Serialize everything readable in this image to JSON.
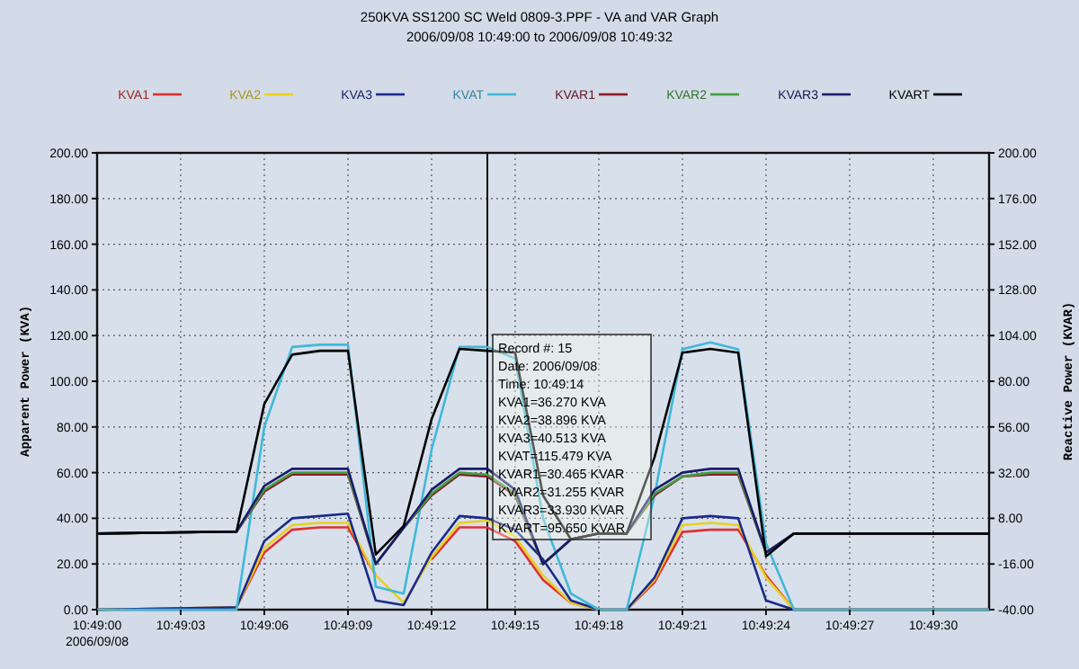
{
  "chart_data": {
    "type": "line",
    "title": "250KVA SS1200 SC Weld 0809-3.PPF - VA and VAR Graph",
    "subtitle": "2006/09/08 10:49:00 to 2006/09/08 10:49:32",
    "ylabel": "Apparent Power (KVA)",
    "y2label": "Reactive Power (KVAR)",
    "x": [
      10.816667,
      10.818056,
      10.818333,
      10.818611,
      10.818889,
      10.819167,
      10.819444,
      10.819722,
      10.82,
      10.820278,
      10.820556,
      10.820833,
      10.821111,
      10.821389,
      10.821667,
      10.821944,
      10.822222,
      10.8225,
      10.822778,
      10.823056,
      10.823333,
      10.823611,
      10.825556
    ],
    "series": [
      {
        "name": "KVA1",
        "color": "#e03030",
        "values": [
          0,
          1,
          25,
          35,
          36,
          36,
          15,
          null,
          22,
          36,
          36,
          30,
          13,
          3,
          0,
          0,
          12,
          34,
          35,
          35,
          15,
          0,
          0
        ]
      },
      {
        "name": "KVA2",
        "color": "#e8d020",
        "values": [
          0,
          1,
          27,
          37,
          38,
          38,
          15,
          3,
          23,
          38,
          39,
          32,
          15,
          3,
          0,
          0,
          13,
          37,
          38,
          37,
          14,
          0,
          0
        ]
      },
      {
        "name": "KVA3",
        "color": "#1a2a8a",
        "values": [
          0,
          1,
          30,
          40,
          41,
          42,
          4,
          2,
          25,
          41,
          40,
          35,
          22,
          4,
          0,
          0,
          14,
          40,
          41,
          40,
          4,
          0,
          0
        ]
      },
      {
        "name": "KVAT",
        "color": "#40b8d8",
        "values": [
          0,
          0,
          80,
          115,
          116,
          116,
          10,
          7,
          70,
          115,
          115,
          110,
          40,
          7,
          0,
          0,
          50,
          114,
          117,
          114,
          29,
          0,
          0
        ]
      },
      {
        "name": "KVAR1",
        "color": "#8a1a2a",
        "axis": "y2",
        "values": [
          0,
          1,
          22,
          31,
          31,
          31,
          -16,
          3,
          20,
          31,
          30,
          20,
          -16,
          -3,
          0,
          0,
          20,
          30,
          31,
          31,
          -10,
          0,
          0
        ]
      },
      {
        "name": "KVAR2",
        "color": "#40a040",
        "axis": "y2",
        "values": [
          0,
          1,
          23,
          32,
          32,
          32,
          -16,
          3,
          21,
          32,
          31,
          21,
          -16,
          -3,
          0,
          0,
          21,
          30,
          32,
          32,
          -10,
          0,
          0
        ]
      },
      {
        "name": "KVAR3",
        "color": "#1a1a6a",
        "axis": "y2",
        "values": [
          0,
          1,
          25,
          34,
          34,
          34,
          -16,
          3,
          23,
          34,
          34,
          23,
          -16,
          -3,
          0,
          0,
          23,
          32,
          34,
          34,
          -10,
          0,
          0
        ]
      },
      {
        "name": "KVART",
        "color": "#000000",
        "axis": "y2",
        "values": [
          0,
          1,
          68,
          94,
          96,
          96,
          -11,
          4,
          60,
          97,
          96,
          95,
          20,
          -3,
          0,
          0,
          40,
          95,
          97,
          95,
          -12,
          0,
          0
        ]
      }
    ],
    "xlim": [
      10.816667,
      10.825556
    ],
    "xticks": [
      {
        "value": 10.816667,
        "label": "10:49:00\n2006/09/08"
      },
      {
        "value": 10.8175,
        "label": "10:49:03"
      },
      {
        "value": 10.818333,
        "label": "10:49:06"
      },
      {
        "value": 10.819167,
        "label": "10:49:09"
      },
      {
        "value": 10.82,
        "label": "10:49:12"
      },
      {
        "value": 10.820833,
        "label": "10:49:15"
      },
      {
        "value": 10.821667,
        "label": "10:49:18"
      },
      {
        "value": 10.8225,
        "label": "10:49:21"
      },
      {
        "value": 10.823333,
        "label": "10:49:24"
      },
      {
        "value": 10.824167,
        "label": "10:49:27"
      },
      {
        "value": 10.825,
        "label": "10:49:30"
      }
    ],
    "ylim": [
      0,
      200
    ],
    "yticks": [
      {
        "value": 0,
        "label": "0.00"
      },
      {
        "value": 20,
        "label": "20.00"
      },
      {
        "value": 40,
        "label": "40.00"
      },
      {
        "value": 60,
        "label": "60.00"
      },
      {
        "value": 80,
        "label": "80.00"
      },
      {
        "value": 100,
        "label": "100.00"
      },
      {
        "value": 120,
        "label": "120.00"
      },
      {
        "value": 140,
        "label": "140.00"
      },
      {
        "value": 160,
        "label": "160.00"
      },
      {
        "value": 180,
        "label": "180.00"
      },
      {
        "value": 200,
        "label": "200.00"
      }
    ],
    "y2lim": [
      -40,
      200
    ],
    "y2ticks": [
      {
        "value": -40,
        "label": "-40.00"
      },
      {
        "value": -16,
        "label": "-16.00"
      },
      {
        "value": 8,
        "label": "8.00"
      },
      {
        "value": 32,
        "label": "32.00"
      },
      {
        "value": 56,
        "label": "56.00"
      },
      {
        "value": 80,
        "label": "80.00"
      },
      {
        "value": 104,
        "label": "104.00"
      },
      {
        "value": 128,
        "label": "128.00"
      },
      {
        "value": 152,
        "label": "152.00"
      },
      {
        "value": 176,
        "label": "176.00"
      },
      {
        "value": 200,
        "label": "200.00"
      }
    ],
    "ref_lines": [
      {
        "axis": "x",
        "value": 10.820556,
        "color": "#000000"
      }
    ],
    "annotations": [
      "Record #: 15",
      "Date: 2006/09/08",
      "Time: 10:49:14",
      "KVA1=36.270 KVA",
      "KVA2=38.896 KVA",
      "KVA3=40.513 KVA",
      "KVAT=115.479 KVA",
      "KVAR1=30.465 KVAR",
      "KVAR2=31.255 KVAR",
      "KVAR3=33.930 KVAR",
      "KVART=95.650 KVAR"
    ],
    "grid": true,
    "legend": "top",
    "marker": "none",
    "line_style": "solid"
  }
}
